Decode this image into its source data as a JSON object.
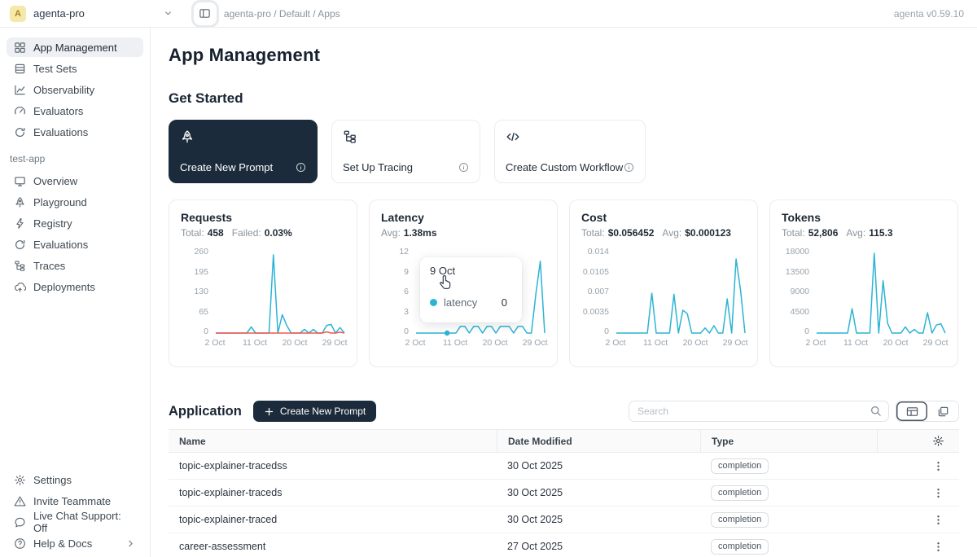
{
  "topbar": {
    "avatar_letter": "A",
    "workspace": "agenta-pro",
    "breadcrumb": "agenta-pro / Default / Apps",
    "version": "agenta v0.59.10"
  },
  "sidebar": {
    "top_items": [
      {
        "label": "App Management",
        "icon": "grid-icon",
        "selected": true
      },
      {
        "label": "Test Sets",
        "icon": "test-sets-icon",
        "selected": false
      },
      {
        "label": "Observability",
        "icon": "chart-line-icon",
        "selected": false
      },
      {
        "label": "Evaluators",
        "icon": "gauge-icon",
        "selected": false
      },
      {
        "label": "Evaluations",
        "icon": "refresh-icon",
        "selected": false
      }
    ],
    "section_label": "test-app",
    "app_items": [
      {
        "label": "Overview",
        "icon": "monitor-icon"
      },
      {
        "label": "Playground",
        "icon": "rocket-icon"
      },
      {
        "label": "Registry",
        "icon": "bolt-icon"
      },
      {
        "label": "Evaluations",
        "icon": "refresh-icon"
      },
      {
        "label": "Traces",
        "icon": "tree-icon"
      },
      {
        "label": "Deployments",
        "icon": "cloud-upload-icon"
      }
    ],
    "bottom_items": [
      {
        "label": "Settings",
        "icon": "gear-icon"
      },
      {
        "label": "Invite Teammate",
        "icon": "alert-triangle-icon"
      },
      {
        "label": "Live Chat Support: Off",
        "icon": "chat-bubble-icon"
      },
      {
        "label": "Help & Docs",
        "icon": "help-circle-icon",
        "chevron": true
      }
    ]
  },
  "main": {
    "title": "App Management",
    "get_started": {
      "heading": "Get Started",
      "cards": [
        {
          "label": "Create New Prompt",
          "icon": "rocket-icon",
          "dark": true
        },
        {
          "label": "Set Up Tracing",
          "icon": "tracing-tree-icon",
          "dark": false
        },
        {
          "label": "Create Custom Workflow",
          "icon": "code-icon",
          "dark": false
        }
      ]
    },
    "application": {
      "heading": "Application",
      "create_button": "Create New Prompt",
      "search_placeholder": "Search",
      "table": {
        "columns": [
          "Name",
          "Date Modified",
          "Type"
        ],
        "rows": [
          {
            "name": "topic-explainer-tracedss",
            "date_modified": "30 Oct 2025",
            "type": "completion"
          },
          {
            "name": "topic-explainer-traceds",
            "date_modified": "30 Oct 2025",
            "type": "completion"
          },
          {
            "name": "topic-explainer-traced",
            "date_modified": "30 Oct 2025",
            "type": "completion"
          },
          {
            "name": "career-assessment",
            "date_modified": "27 Oct 2025",
            "type": "completion"
          }
        ]
      }
    }
  },
  "colors": {
    "accent_dark": "#1c2b3b",
    "chart_blue": "#2cb4d4",
    "chart_red": "#f5564e",
    "avatar_bg": "#f6e8a6"
  },
  "chart_data": [
    {
      "type": "line",
      "title": "Requests",
      "stats": [
        {
          "label": "Total:",
          "value": "458"
        },
        {
          "label": "Failed:",
          "value": "0.03%"
        }
      ],
      "x_day_range": [
        2,
        31
      ],
      "xticks": [
        {
          "day": 2,
          "label": "2 Oct"
        },
        {
          "day": 11,
          "label": "11 Oct"
        },
        {
          "day": 20,
          "label": "20 Oct"
        },
        {
          "day": 29,
          "label": "29 Oct"
        }
      ],
      "ylim": [
        0,
        260
      ],
      "yticks": [
        0,
        65,
        130,
        195,
        260
      ],
      "series": [
        {
          "name": "requests",
          "color": "#2cb4d4",
          "values": [
            0,
            0,
            0,
            0,
            0,
            0,
            0,
            0,
            20,
            0,
            0,
            0,
            0,
            255,
            0,
            60,
            25,
            0,
            0,
            0,
            12,
            0,
            12,
            0,
            0,
            25,
            28,
            0,
            18,
            0
          ]
        },
        {
          "name": "failed",
          "color": "#f5564e",
          "values": [
            0,
            0,
            0,
            0,
            0,
            0,
            0,
            0,
            0,
            0,
            0,
            0,
            0,
            0,
            0,
            0,
            0,
            0,
            0,
            0,
            0,
            0,
            0,
            0,
            0,
            4,
            0,
            0,
            3,
            0
          ]
        }
      ]
    },
    {
      "type": "line",
      "title": "Latency",
      "stats": [
        {
          "label": "Avg:",
          "value": "1.38ms"
        }
      ],
      "x_day_range": [
        2,
        31
      ],
      "xticks": [
        {
          "day": 2,
          "label": "2 Oct"
        },
        {
          "day": 11,
          "label": "11 Oct"
        },
        {
          "day": 20,
          "label": "20 Oct"
        },
        {
          "day": 29,
          "label": "29 Oct"
        }
      ],
      "ylim": [
        0,
        12
      ],
      "yticks": [
        0,
        3,
        6,
        9,
        12
      ],
      "series": [
        {
          "name": "latency",
          "color": "#2cb4d4",
          "values": [
            0,
            0,
            0,
            0,
            0,
            0,
            0,
            0,
            0,
            0,
            1,
            1,
            0,
            1,
            1,
            0,
            1,
            1,
            0,
            1,
            1,
            1,
            0,
            1,
            1,
            0,
            0,
            5.8,
            10.8,
            0
          ]
        }
      ],
      "marker": {
        "index": 7,
        "day_label": "9 Oct",
        "value": 0
      },
      "tooltip": {
        "date": "9 Oct",
        "series_label": "latency",
        "value": "0",
        "dot_color": "#2cb4d4"
      }
    },
    {
      "type": "line",
      "title": "Cost",
      "stats": [
        {
          "label": "Total:",
          "value": "$0.056452"
        },
        {
          "label": "Avg:",
          "value": "$0.000123"
        }
      ],
      "x_day_range": [
        2,
        31
      ],
      "xticks": [
        {
          "day": 2,
          "label": "2 Oct"
        },
        {
          "day": 11,
          "label": "11 Oct"
        },
        {
          "day": 20,
          "label": "20 Oct"
        },
        {
          "day": 29,
          "label": "29 Oct"
        }
      ],
      "ylim": [
        0,
        0.014
      ],
      "yticks": [
        0,
        0.0035,
        0.007,
        0.0105,
        0.014
      ],
      "series": [
        {
          "name": "cost",
          "color": "#2cb4d4",
          "values": [
            0,
            0,
            0,
            0,
            0,
            0,
            0,
            0,
            0.007,
            0,
            0,
            0,
            0,
            0.0068,
            0,
            0.004,
            0.0034,
            0,
            0,
            0,
            0.0009,
            0,
            0.0013,
            0,
            0,
            0.006,
            0,
            0.013,
            0.0075,
            0
          ]
        }
      ]
    },
    {
      "type": "line",
      "title": "Tokens",
      "stats": [
        {
          "label": "Total:",
          "value": "52,806"
        },
        {
          "label": "Avg:",
          "value": "115.3"
        }
      ],
      "x_day_range": [
        2,
        31
      ],
      "xticks": [
        {
          "day": 2,
          "label": "2 Oct"
        },
        {
          "day": 11,
          "label": "11 Oct"
        },
        {
          "day": 20,
          "label": "20 Oct"
        },
        {
          "day": 29,
          "label": "29 Oct"
        }
      ],
      "ylim": [
        0,
        18000
      ],
      "yticks": [
        0,
        4500,
        9000,
        13500,
        18000
      ],
      "series": [
        {
          "name": "tokens",
          "color": "#2cb4d4",
          "values": [
            0,
            0,
            0,
            0,
            0,
            0,
            0,
            0,
            5500,
            0,
            0,
            0,
            0,
            18000,
            0,
            11800,
            2200,
            0,
            0,
            0,
            1400,
            0,
            800,
            0,
            0,
            4600,
            0,
            1800,
            2100,
            0
          ]
        }
      ]
    }
  ]
}
